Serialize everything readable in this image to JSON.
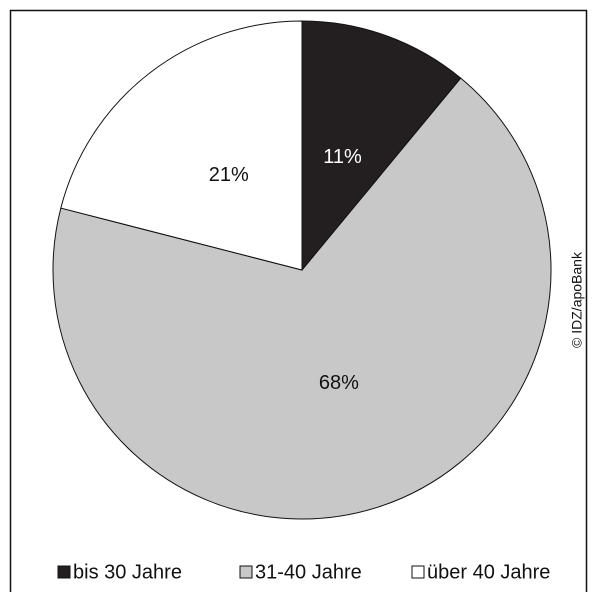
{
  "chart_data": {
    "type": "pie",
    "categories": [
      "bis 30 Jahre",
      "31-40 Jahre",
      "über 40 Jahre"
    ],
    "values": [
      11,
      68,
      21
    ],
    "value_labels": [
      "11%",
      "68%",
      "21%"
    ],
    "colors": [
      "#231f20",
      "#c8c8c8",
      "#ffffff"
    ],
    "annotation": "© IDZ/apoBank",
    "legend": "bottom"
  }
}
